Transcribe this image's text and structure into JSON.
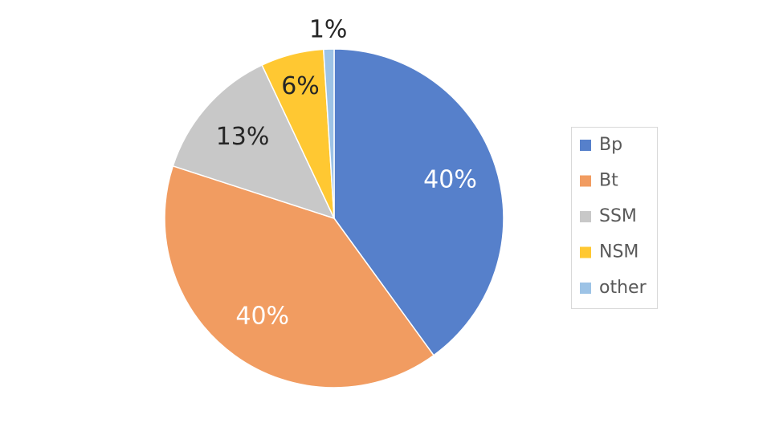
{
  "chart_data": {
    "type": "pie",
    "categories": [
      "Bp",
      "Bt",
      "SSM",
      "NSM",
      "other"
    ],
    "values": [
      40,
      40,
      13,
      6,
      1
    ],
    "value_labels": [
      "40%",
      "40%",
      "13%",
      "6%",
      "1%"
    ],
    "colors": [
      "#5680cb",
      "#f19c61",
      "#c8c8c8",
      "#ffc832",
      "#9dc3e6"
    ],
    "label_colors": [
      "#ffffff",
      "#ffffff",
      "#262626",
      "#262626",
      "#262626"
    ],
    "legend": "right"
  }
}
